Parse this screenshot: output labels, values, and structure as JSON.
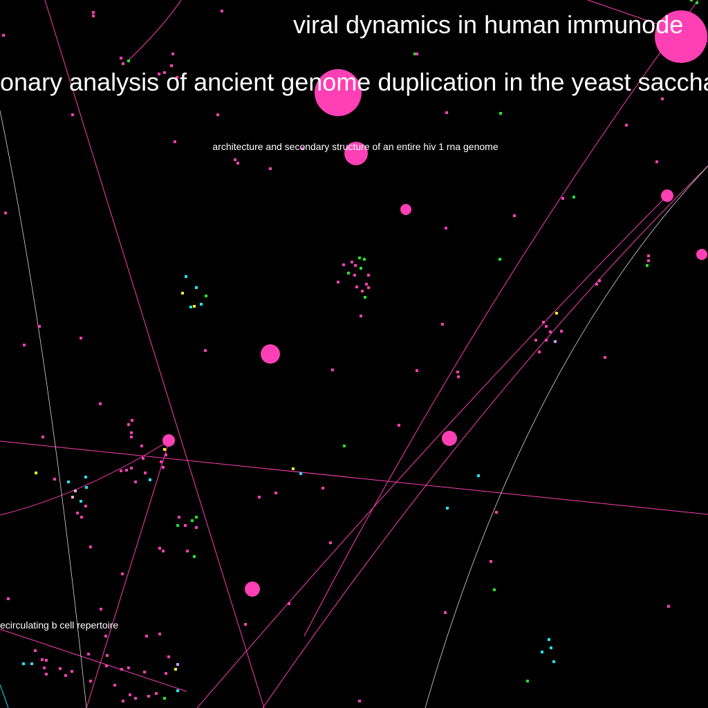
{
  "labels": [
    {
      "text": "viral dynamics in human immunode"
    },
    {
      "text": "onary analysis of ancient genome duplication in the yeast saccharomyc"
    },
    {
      "text": "architecture and secondary structure of an entire hiv 1 rna genome"
    },
    {
      "text": "ecirculating b cell repertoire"
    }
  ]
}
